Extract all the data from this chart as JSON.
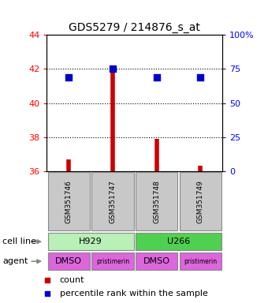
{
  "title": "GDS5279 / 214876_s_at",
  "samples": [
    "GSM351746",
    "GSM351747",
    "GSM351748",
    "GSM351749"
  ],
  "count_values": [
    36.7,
    42.1,
    37.9,
    36.3
  ],
  "percentile_values": [
    41.5,
    42.0,
    41.5,
    41.5
  ],
  "ylim_left": [
    36,
    44
  ],
  "ylim_right": [
    0,
    100
  ],
  "yticks_left": [
    36,
    38,
    40,
    42,
    44
  ],
  "yticks_right": [
    0,
    25,
    50,
    75,
    100
  ],
  "ytick_labels_right": [
    "0",
    "25",
    "50",
    "75",
    "100%"
  ],
  "hlines": [
    38,
    40,
    42
  ],
  "cell_lines": [
    [
      "H929",
      0,
      2
    ],
    [
      "U266",
      2,
      4
    ]
  ],
  "cell_line_colors": [
    "#b8f0b8",
    "#50d050"
  ],
  "agents": [
    "DMSO",
    "pristimerin",
    "DMSO",
    "pristimerin"
  ],
  "agent_color": "#dd66dd",
  "sample_box_color": "#c8c8c8",
  "bar_color": "#cc0000",
  "dot_color": "#0000cc",
  "dot_size": 28,
  "title_fontsize": 10
}
